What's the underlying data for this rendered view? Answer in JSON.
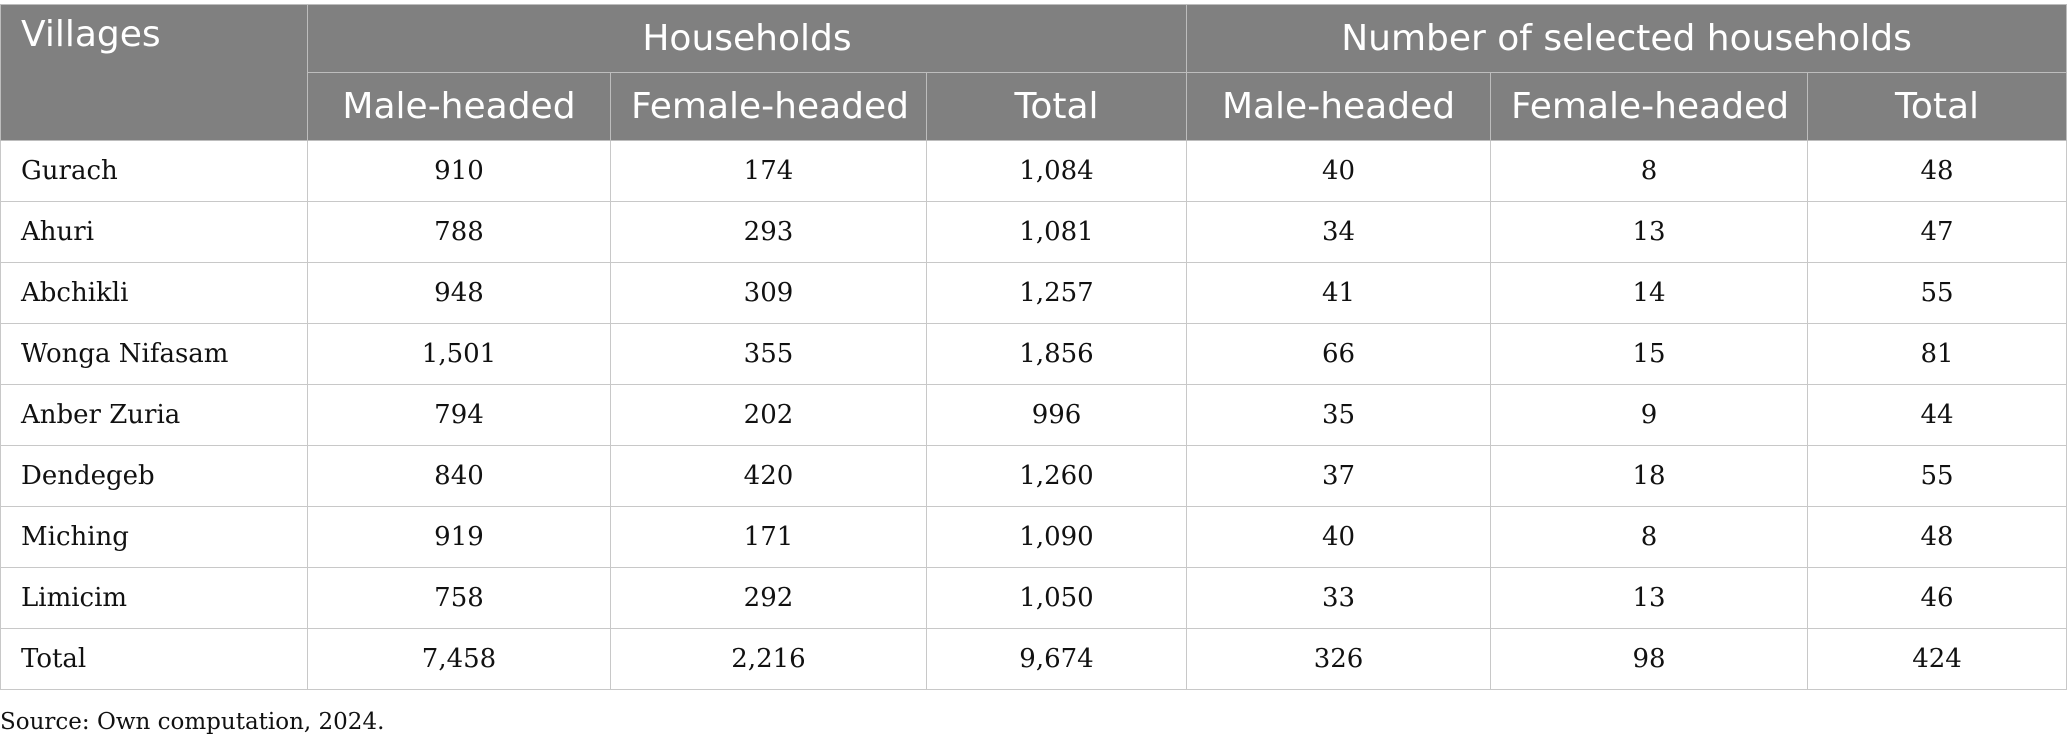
{
  "table": {
    "headers": {
      "villages": "Villages",
      "households_group": "Households",
      "selected_group": "Number of selected households",
      "sub": [
        "Male-headed",
        "Female-headed",
        "Total",
        "Male-headed",
        "Female-headed",
        "Total"
      ]
    },
    "rows": [
      {
        "village": "Gurach",
        "values": [
          "910",
          "174",
          "1,084",
          "40",
          "8",
          "48"
        ]
      },
      {
        "village": "Ahuri",
        "values": [
          "788",
          "293",
          "1,081",
          "34",
          "13",
          "47"
        ]
      },
      {
        "village": "Abchikli",
        "values": [
          "948",
          "309",
          "1,257",
          "41",
          "14",
          "55"
        ]
      },
      {
        "village": "Wonga Nifasam",
        "values": [
          "1,501",
          "355",
          "1,856",
          "66",
          "15",
          "81"
        ]
      },
      {
        "village": "Anber Zuria",
        "values": [
          "794",
          "202",
          "996",
          "35",
          "9",
          "44"
        ]
      },
      {
        "village": "Dendegeb",
        "values": [
          "840",
          "420",
          "1,260",
          "37",
          "18",
          "55"
        ]
      },
      {
        "village": "Miching",
        "values": [
          "919",
          "171",
          "1,090",
          "40",
          "8",
          "48"
        ]
      },
      {
        "village": "Limicim",
        "values": [
          "758",
          "292",
          "1,050",
          "33",
          "13",
          "46"
        ]
      },
      {
        "village": "Total",
        "values": [
          "7,458",
          "2,216",
          "9,674",
          "326",
          "98",
          "424"
        ]
      }
    ]
  },
  "source_note": "Source: Own computation, 2024.",
  "colors": {
    "header_bg": "#808080",
    "header_text": "#ffffff",
    "border": "#c8c8c8"
  }
}
